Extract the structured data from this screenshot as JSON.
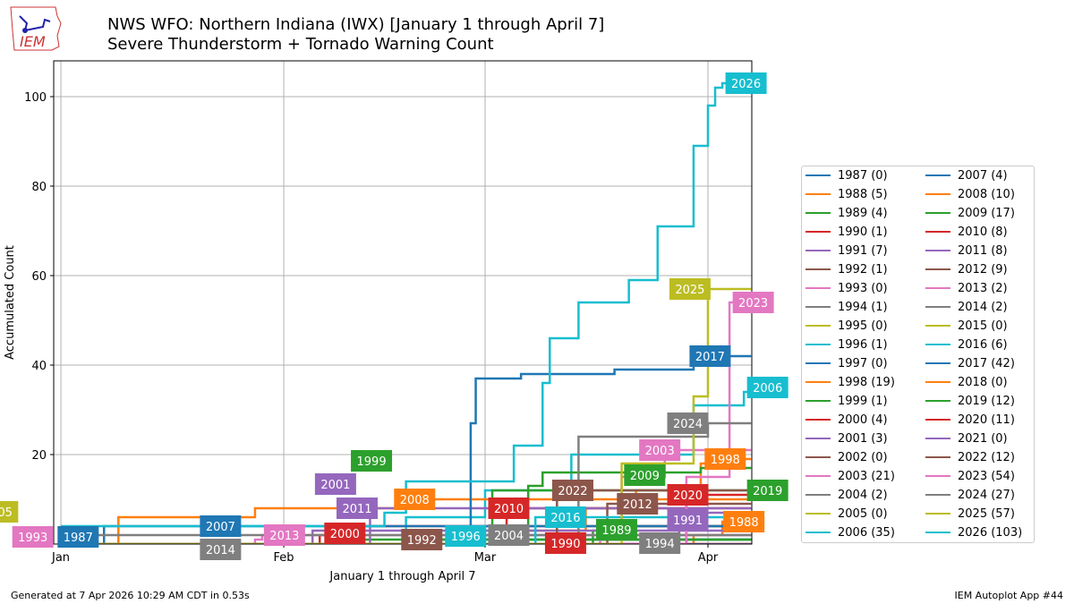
{
  "header": {
    "title_line1": "NWS WFO: Northern Indiana (IWX) [January 1 through April 7]",
    "title_line2": "Severe Thunderstorm + Tornado Warning Count",
    "logo_text": "IEM"
  },
  "footer": {
    "generated": "Generated at 7 Apr 2026 10:29 AM CDT in 0.53s",
    "app": "IEM Autoplot App #44"
  },
  "palette": [
    "#1f77b4",
    "#ff7f0e",
    "#2ca02c",
    "#d62728",
    "#9467bd",
    "#8c564b",
    "#e377c2",
    "#7f7f7f",
    "#bcbd22",
    "#17becf"
  ],
  "chart_data": {
    "type": "line",
    "step": true,
    "title": "Severe Thunderstorm + Tornado Warning Count",
    "xlabel": "January 1 through April 7",
    "ylabel": "Accumulated Count",
    "xlim_days_since_jan1": [
      -1,
      96.1
    ],
    "ylim": [
      0,
      108
    ],
    "grid": true,
    "legend_placement": "right",
    "xticks": [
      {
        "day": 0,
        "label": "Jan"
      },
      {
        "day": 31,
        "label": "Feb"
      },
      {
        "day": 59,
        "label": "Mar"
      },
      {
        "day": 90,
        "label": "Apr"
      }
    ],
    "yticks": [
      20,
      40,
      60,
      80,
      100
    ],
    "series": [
      {
        "year": "1987",
        "final": 0,
        "legend": "1987 (0)",
        "steps": [
          [
            0,
            0
          ],
          [
            96,
            0
          ]
        ],
        "label_day": 2.4
      },
      {
        "year": "1988",
        "final": 5,
        "legend": "1988 (5)",
        "steps": [
          [
            0,
            0
          ],
          [
            88,
            2
          ],
          [
            92,
            5
          ],
          [
            96,
            5
          ]
        ],
        "label_day": 95
      },
      {
        "year": "1989",
        "final": 4,
        "legend": "1989 (4)",
        "steps": [
          [
            0,
            0
          ],
          [
            74,
            3
          ],
          [
            76,
            4
          ],
          [
            96,
            4
          ]
        ],
        "label_day": 77.3
      },
      {
        "year": "1990",
        "final": 1,
        "legend": "1990 (1)",
        "steps": [
          [
            0,
            0
          ],
          [
            68,
            1
          ],
          [
            96,
            1
          ]
        ],
        "label_day": 70.2
      },
      {
        "year": "1991",
        "final": 7,
        "legend": "1991 (7)",
        "steps": [
          [
            0,
            0
          ],
          [
            86,
            5
          ],
          [
            88,
            7
          ],
          [
            96,
            7
          ]
        ],
        "label_day": 87.2
      },
      {
        "year": "1992",
        "final": 1,
        "legend": "1992 (1)",
        "steps": [
          [
            0,
            0
          ],
          [
            49,
            1
          ],
          [
            96,
            1
          ]
        ],
        "label_day": 50.2
      },
      {
        "year": "1993",
        "final": 0,
        "legend": "1993 (0)",
        "steps": [
          [
            0,
            0
          ],
          [
            96,
            0
          ]
        ],
        "label_day": -3.9
      },
      {
        "year": "1994",
        "final": 1,
        "legend": "1994 (1)",
        "steps": [
          [
            0,
            0
          ],
          [
            83,
            1
          ],
          [
            96,
            1
          ]
        ],
        "label_day": 83.3
      },
      {
        "year": "1995",
        "final": 0,
        "legend": "1995 (0)",
        "steps": [
          [
            0,
            0
          ],
          [
            96,
            0
          ]
        ],
        "label_day": -14
      },
      {
        "year": "1996",
        "final": 1,
        "legend": "1996 (1)",
        "steps": [
          [
            0,
            0
          ],
          [
            55,
            1
          ],
          [
            96,
            1
          ]
        ],
        "label_day": 56.3
      },
      {
        "year": "1997",
        "final": 0,
        "legend": "1997 (0)",
        "steps": [
          [
            0,
            0
          ],
          [
            96,
            0
          ]
        ],
        "label_day": -16
      },
      {
        "year": "1998",
        "final": 19,
        "legend": "1998 (19)",
        "steps": [
          [
            0,
            0
          ],
          [
            60,
            3
          ],
          [
            73,
            8
          ],
          [
            80,
            12
          ],
          [
            89,
            18
          ],
          [
            90,
            19
          ],
          [
            96,
            19
          ]
        ],
        "label_day": 92.4
      },
      {
        "year": "1999",
        "final": 1,
        "legend": "1999 (1)",
        "steps": [
          [
            0,
            0
          ],
          [
            42,
            1
          ],
          [
            96,
            1
          ]
        ],
        "label_day": 43.2
      },
      {
        "year": "2000",
        "final": 4,
        "legend": "2000 (4)",
        "steps": [
          [
            0,
            0
          ],
          [
            36,
            2
          ],
          [
            37,
            4
          ],
          [
            96,
            4
          ]
        ],
        "label_day": 39.5
      },
      {
        "year": "2001",
        "final": 3,
        "legend": "2001 (3)",
        "steps": [
          [
            0,
            0
          ],
          [
            35,
            3
          ],
          [
            96,
            3
          ]
        ],
        "label_day": 38.2
      },
      {
        "year": "2002",
        "final": 0,
        "legend": "2002 (0)",
        "steps": [
          [
            0,
            0
          ],
          [
            96,
            0
          ]
        ],
        "label_day": -18
      },
      {
        "year": "2003",
        "final": 21,
        "legend": "2003 (21)",
        "steps": [
          [
            0,
            0
          ],
          [
            75,
            5
          ],
          [
            78,
            15
          ],
          [
            84,
            21
          ],
          [
            96,
            21
          ]
        ],
        "label_day": 83.3
      },
      {
        "year": "2004",
        "final": 2,
        "legend": "2004 (2)",
        "steps": [
          [
            0,
            0
          ],
          [
            56,
            2
          ],
          [
            96,
            2
          ]
        ],
        "label_day": 62.3
      },
      {
        "year": "2005",
        "final": 0,
        "legend": "2005 (0)",
        "steps": [
          [
            0,
            0
          ],
          [
            96,
            0
          ]
        ],
        "label_day": -8.8
      },
      {
        "year": "2006",
        "final": 35,
        "legend": "2006 (35)",
        "steps": [
          [
            0,
            0
          ],
          [
            48,
            6
          ],
          [
            59,
            12
          ],
          [
            71,
            20
          ],
          [
            88,
            31
          ],
          [
            95,
            34
          ],
          [
            96,
            35
          ]
        ],
        "label_day": 98.3
      },
      {
        "year": "2007",
        "final": 4,
        "legend": "2007 (4)",
        "steps": [
          [
            0,
            0
          ],
          [
            6,
            4
          ],
          [
            96,
            4
          ]
        ],
        "label_day": 22.2
      },
      {
        "year": "2008",
        "final": 10,
        "legend": "2008 (10)",
        "steps": [
          [
            0,
            0
          ],
          [
            8,
            6
          ],
          [
            27,
            8
          ],
          [
            47,
            10
          ],
          [
            96,
            10
          ]
        ],
        "label_day": 49.2
      },
      {
        "year": "2009",
        "final": 17,
        "legend": "2009 (17)",
        "steps": [
          [
            0,
            0
          ],
          [
            65,
            13
          ],
          [
            67,
            16
          ],
          [
            89,
            17
          ],
          [
            96,
            17
          ]
        ],
        "label_day": 81.2
      },
      {
        "year": "2010",
        "final": 8,
        "legend": "2010 (8)",
        "steps": [
          [
            0,
            0
          ],
          [
            62,
            8
          ],
          [
            96,
            8
          ]
        ],
        "label_day": 62.3
      },
      {
        "year": "2011",
        "final": 8,
        "legend": "2011 (8)",
        "steps": [
          [
            0,
            0
          ],
          [
            43,
            8
          ],
          [
            96,
            8
          ]
        ],
        "label_day": 41.2
      },
      {
        "year": "2012",
        "final": 9,
        "legend": "2012 (9)",
        "steps": [
          [
            0,
            0
          ],
          [
            76,
            9
          ],
          [
            96,
            9
          ]
        ],
        "label_day": 80.2
      },
      {
        "year": "2013",
        "final": 2,
        "legend": "2013 (2)",
        "steps": [
          [
            0,
            0
          ],
          [
            27,
            1
          ],
          [
            28,
            2
          ],
          [
            96,
            2
          ]
        ],
        "label_day": 31.1
      },
      {
        "year": "2014",
        "final": 2,
        "legend": "2014 (2)",
        "steps": [
          [
            0,
            0
          ],
          [
            3,
            2
          ],
          [
            96,
            2
          ]
        ],
        "label_day": 22.2
      },
      {
        "year": "2015",
        "final": 0,
        "legend": "2015 (0)",
        "steps": [
          [
            0,
            0
          ],
          [
            96,
            0
          ]
        ],
        "label_day": -20
      },
      {
        "year": "2016",
        "final": 6,
        "legend": "2016 (6)",
        "steps": [
          [
            0,
            0
          ],
          [
            66,
            6
          ],
          [
            96,
            6
          ]
        ],
        "label_day": 70.2
      },
      {
        "year": "2017",
        "final": 42,
        "legend": "2017 (42)",
        "steps": [
          [
            0,
            0
          ],
          [
            57,
            27
          ],
          [
            57.7,
            37
          ],
          [
            64,
            38
          ],
          [
            77,
            39
          ],
          [
            88,
            42
          ],
          [
            96,
            42
          ]
        ],
        "label_day": 90.3
      },
      {
        "year": "2018",
        "final": 0,
        "legend": "2018 (0)",
        "steps": [
          [
            0,
            0
          ],
          [
            96,
            0
          ]
        ],
        "label_day": -22
      },
      {
        "year": "2019",
        "final": 12,
        "legend": "2019 (12)",
        "steps": [
          [
            0,
            0
          ],
          [
            60,
            12
          ],
          [
            96,
            12
          ]
        ],
        "label_day": 98.3
      },
      {
        "year": "2020",
        "final": 11,
        "legend": "2020 (11)",
        "steps": [
          [
            0,
            0
          ],
          [
            87,
            11
          ],
          [
            96,
            11
          ]
        ],
        "label_day": 87.2
      },
      {
        "year": "2021",
        "final": 0,
        "legend": "2021 (0)",
        "steps": [
          [
            0,
            0
          ],
          [
            96,
            0
          ]
        ],
        "label_day": -24
      },
      {
        "year": "2022",
        "final": 12,
        "legend": "2022 (12)",
        "steps": [
          [
            0,
            0
          ],
          [
            69,
            12
          ],
          [
            96,
            12
          ]
        ],
        "label_day": 71.2
      },
      {
        "year": "2023",
        "final": 54,
        "legend": "2023 (54)",
        "steps": [
          [
            0,
            0
          ],
          [
            87,
            15
          ],
          [
            93,
            54
          ],
          [
            96,
            54
          ]
        ],
        "label_day": 96.3
      },
      {
        "year": "2024",
        "final": 27,
        "legend": "2024 (27)",
        "steps": [
          [
            0,
            0
          ],
          [
            72,
            24
          ],
          [
            90,
            27
          ],
          [
            96,
            27
          ]
        ],
        "label_day": 87.2
      },
      {
        "year": "2025",
        "final": 57,
        "legend": "2025 (57)",
        "steps": [
          [
            0,
            0
          ],
          [
            78,
            18
          ],
          [
            88,
            33
          ],
          [
            90,
            57
          ],
          [
            96,
            57
          ]
        ],
        "label_day": 87.5
      },
      {
        "year": "2026",
        "final": 103,
        "legend": "2026 (103)",
        "steps": [
          [
            0,
            4
          ],
          [
            45,
            7
          ],
          [
            48,
            14
          ],
          [
            63,
            22
          ],
          [
            67,
            36
          ],
          [
            68,
            46
          ],
          [
            72,
            54
          ],
          [
            79,
            59
          ],
          [
            83,
            71
          ],
          [
            88,
            89
          ],
          [
            90,
            98
          ],
          [
            91,
            102
          ],
          [
            92,
            103
          ],
          [
            96,
            103
          ]
        ],
        "label_day": 95.3
      }
    ]
  }
}
